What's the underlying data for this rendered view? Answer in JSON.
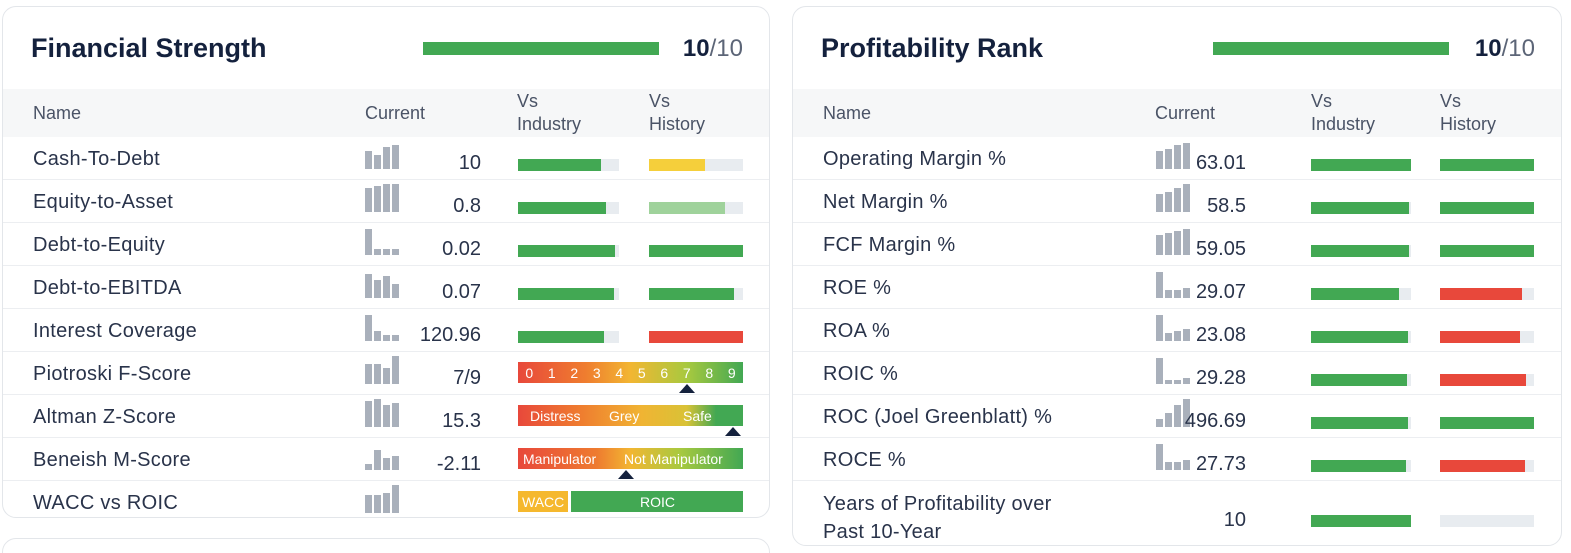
{
  "financial_strength": {
    "title": "Financial Strength",
    "score": "10",
    "score_max": "/10",
    "score_fraction": 1.0,
    "headers": {
      "name": "Name",
      "current": "Current",
      "vs_industry": "Vs\nIndustry",
      "vs_history": "Vs\nHistory"
    },
    "rows": [
      {
        "name": "Cash-To-Debt",
        "value": "10",
        "industry": 0.82,
        "history": 0.6,
        "history_color": "#f5cf3b"
      },
      {
        "name": "Equity-to-Asset",
        "value": "0.8",
        "industry": 0.87,
        "history": 0.81,
        "history_color": "#9fd29b"
      },
      {
        "name": "Debt-to-Equity",
        "value": "0.02",
        "industry": 0.96,
        "history": 1.0,
        "history_color": "#42a853"
      },
      {
        "name": "Debt-to-EBITDA",
        "value": "0.07",
        "industry": 0.95,
        "history": 0.9,
        "history_color": "#42a853"
      },
      {
        "name": "Interest Coverage",
        "value": "120.96",
        "industry": 0.85,
        "history": 1.0,
        "history_color": "#e8483b"
      },
      {
        "name": "Piotroski F-Score",
        "value": "7/9"
      },
      {
        "name": "Altman Z-Score",
        "value": "15.3"
      },
      {
        "name": "Beneish M-Score",
        "value": "-2.11"
      },
      {
        "name": "WACC vs ROIC",
        "value": ""
      }
    ],
    "piotroski_digits": [
      "0",
      "1",
      "2",
      "3",
      "4",
      "5",
      "6",
      "7",
      "8",
      "9"
    ],
    "piotroski_score": 7,
    "altman_labels": {
      "distress": "Distress",
      "grey": "Grey",
      "safe": "Safe"
    },
    "beneish_labels": {
      "manipulator": "Manipulator",
      "not_manipulator": "Not Manipulator"
    },
    "wacc_labels": {
      "wacc": "WACC",
      "roic": "ROIC"
    }
  },
  "profitability_rank": {
    "title": "Profitability Rank",
    "score": "10",
    "score_max": "/10",
    "score_fraction": 1.0,
    "headers": {
      "name": "Name",
      "current": "Current",
      "vs_industry": "Vs\nIndustry",
      "vs_history": "Vs\nHistory"
    },
    "rows": [
      {
        "name": "Operating Margin %",
        "value": "63.01",
        "industry": 1.0,
        "history": 1.0,
        "history_color": "#42a853"
      },
      {
        "name": "Net Margin %",
        "value": "58.5",
        "industry": 0.98,
        "history": 1.0,
        "history_color": "#42a853"
      },
      {
        "name": "FCF Margin %",
        "value": "59.05",
        "industry": 0.98,
        "history": 1.0,
        "history_color": "#42a853"
      },
      {
        "name": "ROE %",
        "value": "29.07",
        "industry": 0.88,
        "history": 0.87,
        "history_color": "#e8483b"
      },
      {
        "name": "ROA %",
        "value": "23.08",
        "industry": 0.97,
        "history": 0.85,
        "history_color": "#e8483b"
      },
      {
        "name": "ROIC %",
        "value": "29.28",
        "industry": 0.96,
        "history": 0.91,
        "history_color": "#e8483b"
      },
      {
        "name": "ROC (Joel Greenblatt) %",
        "value": "496.69",
        "industry": 0.97,
        "history": 1.0,
        "history_color": "#42a853"
      },
      {
        "name": "ROCE %",
        "value": "27.73",
        "industry": 0.95,
        "history": 0.9,
        "history_color": "#e8483b"
      },
      {
        "name": "Years of Profitability over Past 10-Year",
        "value": "10",
        "industry": 1.0,
        "history": 0.0,
        "history_color": "#42a853"
      }
    ]
  }
}
